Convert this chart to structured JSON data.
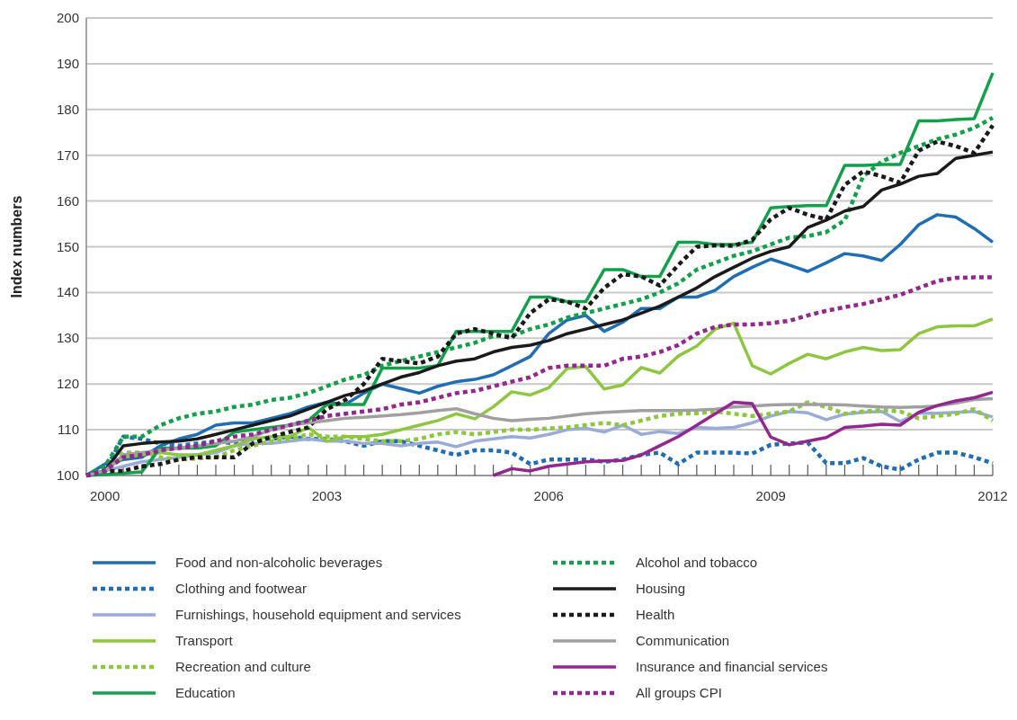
{
  "chart_data": {
    "type": "line",
    "ylabel": "Index numbers",
    "x": [
      1999.75,
      2000,
      2000.25,
      2000.5,
      2000.75,
      2001,
      2001.25,
      2001.5,
      2001.75,
      2002,
      2002.25,
      2002.5,
      2002.75,
      2003,
      2003.25,
      2003.5,
      2003.75,
      2004,
      2004.25,
      2004.5,
      2004.75,
      2005,
      2005.25,
      2005.5,
      2005.75,
      2006,
      2006.25,
      2006.5,
      2006.75,
      2007,
      2007.25,
      2007.5,
      2007.75,
      2008,
      2008.25,
      2008.5,
      2008.75,
      2009,
      2009.25,
      2009.5,
      2009.75,
      2010,
      2010.25,
      2010.5,
      2010.75,
      2011,
      2011.25,
      2011.5,
      2011.75,
      2012
    ],
    "xlim": [
      1999.75,
      2012
    ],
    "xticks": [
      2000,
      {
        "value": 2000.25,
        "label": null
      },
      {
        "value": 2000.5,
        "label": null
      },
      {
        "value": 2000.75,
        "label": null
      },
      {
        "value": 2001,
        "label": null
      },
      {
        "value": 2001.25,
        "label": null
      },
      {
        "value": 2001.5,
        "label": null
      },
      {
        "value": 2001.75,
        "label": null
      },
      {
        "value": 2002,
        "label": null
      },
      {
        "value": 2002.25,
        "label": null
      },
      {
        "value": 2002.5,
        "label": null
      },
      {
        "value": 2002.75,
        "label": null
      },
      2003,
      {
        "value": 2003.25,
        "label": null
      },
      {
        "value": 2003.5,
        "label": null
      },
      {
        "value": 2003.75,
        "label": null
      },
      {
        "value": 2004,
        "label": null
      },
      {
        "value": 2004.25,
        "label": null
      },
      {
        "value": 2004.5,
        "label": null
      },
      {
        "value": 2004.75,
        "label": null
      },
      {
        "value": 2005,
        "label": null
      },
      {
        "value": 2005.25,
        "label": null
      },
      {
        "value": 2005.5,
        "label": null
      },
      {
        "value": 2005.75,
        "label": null
      },
      2006,
      {
        "value": 2006.25,
        "label": null
      },
      {
        "value": 2006.5,
        "label": null
      },
      {
        "value": 2006.75,
        "label": null
      },
      {
        "value": 2007,
        "label": null
      },
      {
        "value": 2007.25,
        "label": null
      },
      {
        "value": 2007.5,
        "label": null
      },
      {
        "value": 2007.75,
        "label": null
      },
      {
        "value": 2008,
        "label": null
      },
      {
        "value": 2008.25,
        "label": null
      },
      {
        "value": 2008.5,
        "label": null
      },
      {
        "value": 2008.75,
        "label": null
      },
      2009,
      {
        "value": 2009.25,
        "label": null
      },
      {
        "value": 2009.5,
        "label": null
      },
      {
        "value": 2009.75,
        "label": null
      },
      {
        "value": 2010,
        "label": null
      },
      {
        "value": 2010.25,
        "label": null
      },
      {
        "value": 2010.5,
        "label": null
      },
      {
        "value": 2010.75,
        "label": null
      },
      {
        "value": 2011,
        "label": null
      },
      {
        "value": 2011.25,
        "label": null
      },
      {
        "value": 2011.5,
        "label": null
      },
      {
        "value": 2011.75,
        "label": null
      },
      2012
    ],
    "ylim": [
      100,
      200
    ],
    "yticks": [
      100,
      110,
      120,
      130,
      140,
      150,
      160,
      170,
      180,
      190,
      200
    ],
    "grid": "y",
    "legend": "bottom",
    "series": [
      {
        "name": "Food and non-alcoholic beverages",
        "color": "#1f6db3",
        "line_style": "solid",
        "values": [
          100,
          102.5,
          103.5,
          104,
          106.5,
          108,
          109,
          111,
          111.5,
          111.5,
          112.5,
          113.5,
          115,
          116,
          115.5,
          118,
          120,
          119,
          118,
          119.5,
          120.5,
          121,
          122,
          124,
          126,
          131,
          134,
          135,
          131.5,
          133.5,
          136.5,
          136.5,
          139,
          139,
          140.5,
          143.5,
          145.5,
          147.3,
          146,
          144.6,
          146.5,
          148.5,
          148,
          147,
          150.5,
          154.8,
          157,
          156.5,
          154,
          151
        ]
      },
      {
        "name": "Clothing and footwear",
        "color": "#1f6db3",
        "line_style": "dotted",
        "values": [
          100,
          101,
          108.5,
          108,
          107,
          106.5,
          107,
          107.5,
          107,
          108,
          108,
          108.5,
          108,
          108,
          107.5,
          106.5,
          107.5,
          107.5,
          106.5,
          105.5,
          104.5,
          105.5,
          105.5,
          105,
          102.5,
          103.5,
          103.5,
          103.5,
          103,
          103.5,
          104.5,
          105,
          102.5,
          105,
          105,
          105,
          104.8,
          106.7,
          107,
          107.2,
          102.7,
          102.7,
          103.8,
          102,
          101.3,
          103.5,
          105,
          105,
          104,
          102.7
        ]
      },
      {
        "name": "Furnishings, household equipment and services",
        "color": "#9aaad9",
        "line_style": "solid",
        "values": [
          100,
          101,
          102,
          103,
          103.5,
          104,
          104.5,
          105,
          106.5,
          107,
          107,
          107.5,
          108,
          107.5,
          107.5,
          107,
          107,
          106.5,
          107,
          107.3,
          106.3,
          107.5,
          108,
          108.5,
          108.2,
          109,
          110,
          110.3,
          109.5,
          111,
          109,
          109.6,
          109.2,
          110.5,
          110.3,
          110.5,
          111.5,
          113,
          114,
          113.7,
          112.2,
          113.4,
          113.8,
          114,
          111.8,
          113.6,
          113.6,
          113.8,
          114,
          112.8
        ]
      },
      {
        "name": "Transport",
        "color": "#8dc63f",
        "line_style": "solid",
        "values": [
          100,
          101,
          104,
          104.5,
          105,
          104.5,
          104.5,
          105.5,
          106.5,
          108,
          108.5,
          108.5,
          110.5,
          107.5,
          108.5,
          108.5,
          109,
          110,
          111,
          112,
          113.5,
          112.4,
          115,
          118.3,
          117.6,
          119.2,
          123.4,
          123.8,
          118.9,
          119.8,
          123.6,
          122.4,
          126.1,
          128.3,
          132,
          133.3,
          124,
          122.2,
          124.5,
          126.5,
          125.5,
          127,
          128,
          127.3,
          127.5,
          131,
          132.5,
          132.7,
          132.7,
          134.2
        ]
      },
      {
        "name": "Recreation and culture",
        "color": "#8dc63f",
        "line_style": "dotted",
        "values": [
          100,
          101,
          105,
          105,
          104,
          103.5,
          103.7,
          104,
          105.5,
          106.5,
          107.5,
          108,
          109,
          108.5,
          108.5,
          108,
          107.5,
          107.5,
          108,
          109,
          109.5,
          109,
          109.5,
          110,
          110,
          110.3,
          110.5,
          111,
          111.5,
          111,
          112,
          113,
          113.5,
          113.6,
          114,
          113.5,
          113,
          113.5,
          114,
          116,
          115,
          113.5,
          114,
          114.3,
          114,
          112.5,
          113,
          113.5,
          114.5,
          112
        ]
      },
      {
        "name": "Education",
        "color": "#12a14a",
        "line_style": "solid",
        "values": [
          100,
          100.2,
          100.5,
          100.8,
          106,
          106,
          106,
          106.5,
          109.5,
          110,
          110.5,
          111,
          112,
          115.5,
          115.5,
          115.5,
          123.5,
          123.5,
          123.5,
          124,
          131.5,
          131.5,
          131.5,
          131.5,
          139,
          139,
          138,
          138,
          145,
          145,
          143.5,
          143.5,
          151,
          151,
          150.5,
          150.5,
          151,
          158.5,
          158.8,
          159,
          159,
          167.8,
          167.8,
          168,
          168,
          177.5,
          177.5,
          177.8,
          178,
          188
        ]
      },
      {
        "name": "Alcohol and tobacco",
        "color": "#12a14a",
        "line_style": "dotted",
        "values": [
          100,
          102,
          108.5,
          108.5,
          111,
          112.5,
          113.5,
          114,
          115,
          115.5,
          116.5,
          117,
          118,
          119.5,
          121,
          122,
          124,
          125,
          126,
          127,
          128,
          129,
          130.5,
          130.5,
          132,
          133,
          134.5,
          135.5,
          136.5,
          137.5,
          138.5,
          140,
          142,
          145,
          146.5,
          148,
          149,
          150.5,
          152,
          152.3,
          153.2,
          155.8,
          165.4,
          168.6,
          170.5,
          172,
          173.5,
          174.5,
          176,
          178.2
        ]
      },
      {
        "name": "Housing",
        "color": "#1a1a1a",
        "line_style": "solid",
        "values": [
          100,
          101,
          106.5,
          107,
          107.3,
          107.5,
          108,
          109,
          110,
          111,
          112,
          113,
          114.5,
          116,
          117.5,
          118.5,
          120,
          121.5,
          122.5,
          124,
          125,
          125.5,
          127,
          128,
          128.5,
          129.5,
          131,
          132,
          133,
          134,
          135.5,
          137,
          139,
          141,
          143.5,
          145.5,
          147.5,
          149,
          150,
          154.2,
          155.8,
          157.8,
          158.8,
          162.4,
          163.7,
          165.4,
          166,
          169.3,
          170,
          170.7
        ]
      },
      {
        "name": "Health",
        "color": "#1a1a1a",
        "line_style": "dotted",
        "values": [
          100,
          101,
          101,
          102,
          102.5,
          103.5,
          104,
          104,
          104,
          107,
          108.5,
          109.5,
          110.5,
          114.5,
          116.5,
          120,
          125.5,
          125,
          124.5,
          126,
          131,
          132,
          131,
          130,
          135.5,
          138.5,
          138,
          136.5,
          141,
          144,
          143.5,
          141.5,
          146,
          150,
          150.3,
          150.2,
          151.5,
          156,
          158.5,
          157,
          156,
          163.5,
          166.5,
          165.4,
          164,
          171,
          173,
          172,
          170.5,
          176.5
        ]
      },
      {
        "name": "Communication",
        "color": "#a0a0a0",
        "line_style": "solid",
        "values": [
          100,
          101,
          104.5,
          105,
          105.5,
          106,
          106.5,
          107,
          107.5,
          108.5,
          110,
          111,
          111.5,
          112,
          112.5,
          112.7,
          113,
          113.3,
          113.7,
          114.2,
          114.6,
          113.5,
          112.5,
          112,
          112.3,
          112.5,
          113,
          113.5,
          113.8,
          114,
          114.2,
          114.2,
          114.2,
          114.3,
          114.5,
          115,
          115.2,
          115.4,
          115.5,
          115.5,
          115.5,
          115.4,
          115.2,
          115,
          114.9,
          115,
          115.2,
          115.8,
          116.6,
          116.8
        ]
      },
      {
        "name": "Insurance and financial services",
        "color": "#93278f",
        "line_style": "solid",
        "values": [
          null,
          null,
          null,
          null,
          null,
          null,
          null,
          null,
          null,
          null,
          null,
          null,
          null,
          null,
          null,
          null,
          null,
          null,
          null,
          null,
          null,
          null,
          100,
          101.5,
          101,
          102,
          102.5,
          103,
          103.2,
          103.3,
          104.5,
          106.5,
          108.5,
          111,
          113.5,
          116,
          115.7,
          108.4,
          106.7,
          107.5,
          108.3,
          110.5,
          110.8,
          111.2,
          111,
          113.8,
          115.3,
          116.3,
          117,
          118.2
        ]
      },
      {
        "name": "All groups CPI",
        "color": "#93278f",
        "line_style": "dotted",
        "values": [
          100,
          101,
          104,
          104.5,
          105.5,
          106,
          106.5,
          107.5,
          108.5,
          109,
          110,
          111,
          112,
          113,
          113.5,
          114,
          114.5,
          115.5,
          116,
          117,
          118,
          118.5,
          119.5,
          120.5,
          121.5,
          123.5,
          124,
          124,
          124,
          125.5,
          126,
          127,
          128.5,
          131,
          132.5,
          133,
          133,
          133.3,
          133.8,
          135,
          136,
          136.8,
          137.5,
          138.5,
          139.5,
          141,
          142.5,
          143.2,
          143.3,
          143.3
        ]
      }
    ]
  }
}
